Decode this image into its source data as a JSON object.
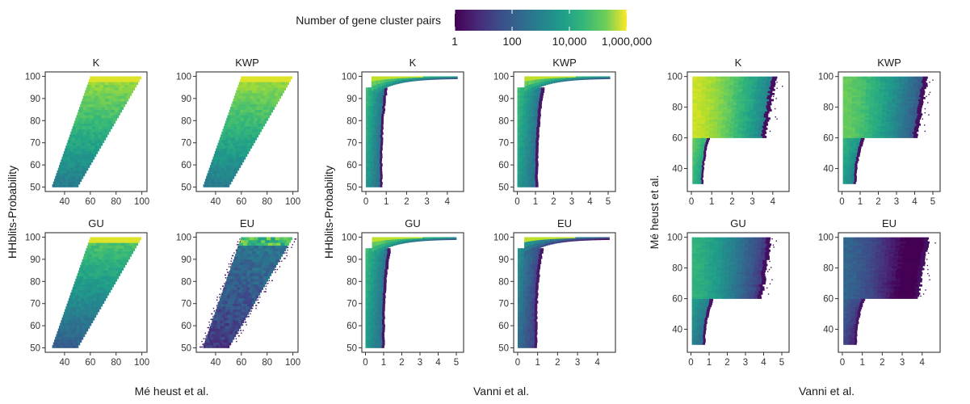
{
  "legend": {
    "title": "Number of gene cluster pairs",
    "scale": "log10",
    "colormap": "viridis",
    "range": [
      1,
      1000000
    ],
    "ticks": [
      {
        "value": 1,
        "label": "1"
      },
      {
        "value": 100,
        "label": "100"
      },
      {
        "value": 10000,
        "label": "10,000"
      },
      {
        "value": 1000000,
        "label": "1,000,000"
      }
    ],
    "placement": "top"
  },
  "chart_data": [
    {
      "type": "heatmap",
      "xlabel": "Mé heust et al.",
      "ylabel": "HHblits-Probability",
      "panels": [
        {
          "label": "K",
          "xlim": [
            25,
            104
          ],
          "ylim": [
            48,
            102
          ],
          "xticks": [
            40,
            60,
            80,
            100
          ],
          "yticks": [
            50,
            60,
            70,
            80,
            90,
            100
          ],
          "polygon": [
            [
              30,
              50
            ],
            [
              50,
              50
            ],
            [
              100,
              100
            ],
            [
              60,
              100
            ]
          ],
          "intensity": "medium-high"
        },
        {
          "label": "KWP",
          "xlim": [
            25,
            104
          ],
          "ylim": [
            48,
            102
          ],
          "xticks": [
            40,
            60,
            80,
            100
          ],
          "yticks": [
            50,
            60,
            70,
            80,
            90,
            100
          ],
          "polygon": [
            [
              30,
              50
            ],
            [
              50,
              50
            ],
            [
              100,
              100
            ],
            [
              60,
              100
            ]
          ],
          "intensity": "medium-high"
        },
        {
          "label": "GU",
          "xlim": [
            25,
            104
          ],
          "ylim": [
            48,
            102
          ],
          "xticks": [
            40,
            60,
            80,
            100
          ],
          "yticks": [
            50,
            60,
            70,
            80,
            90,
            100
          ],
          "polygon": [
            [
              30,
              50
            ],
            [
              50,
              50
            ],
            [
              100,
              100
            ],
            [
              60,
              100
            ]
          ],
          "intensity": "medium"
        },
        {
          "label": "EU",
          "xlim": [
            25,
            104
          ],
          "ylim": [
            48,
            102
          ],
          "xticks": [
            40,
            60,
            80,
            100
          ],
          "yticks": [
            50,
            60,
            70,
            80,
            90,
            100
          ],
          "polygon": [
            [
              30,
              50
            ],
            [
              50,
              50
            ],
            [
              100,
              100
            ],
            [
              60,
              100
            ]
          ],
          "intensity": "low"
        }
      ]
    },
    {
      "type": "heatmap",
      "xlabel": "Vanni et al.",
      "ylabel": "HHblits-Probability",
      "panels": [
        {
          "label": "K",
          "xlim": [
            -0.2,
            4.8
          ],
          "ylim": [
            48,
            102
          ],
          "xticks": [
            0,
            1,
            2,
            3,
            4
          ],
          "yticks": [
            50,
            60,
            70,
            80,
            90,
            100
          ],
          "shape": "L",
          "edge_x": 0.9,
          "max_x": 4.5,
          "intensity": "medium"
        },
        {
          "label": "KWP",
          "xlim": [
            -0.2,
            5.4
          ],
          "ylim": [
            48,
            102
          ],
          "xticks": [
            0,
            1,
            2,
            3,
            4,
            5
          ],
          "yticks": [
            50,
            60,
            70,
            80,
            90,
            100
          ],
          "shape": "L",
          "edge_x": 1.3,
          "max_x": 5.1,
          "intensity": "medium"
        },
        {
          "label": "GU",
          "xlim": [
            -0.2,
            5.4
          ],
          "ylim": [
            48,
            102
          ],
          "xticks": [
            0,
            1,
            2,
            3,
            4,
            5
          ],
          "yticks": [
            50,
            60,
            70,
            80,
            90,
            100
          ],
          "shape": "L",
          "edge_x": 1.2,
          "max_x": 5.0,
          "intensity": "medium"
        },
        {
          "label": "EU",
          "xlim": [
            -0.2,
            4.9
          ],
          "ylim": [
            48,
            102
          ],
          "xticks": [
            0,
            1,
            2,
            3,
            4
          ],
          "yticks": [
            50,
            60,
            70,
            80,
            90,
            100
          ],
          "shape": "L",
          "edge_x": 1.1,
          "max_x": 4.6,
          "intensity": "low"
        }
      ]
    },
    {
      "type": "heatmap",
      "xlabel": "Vanni et al.",
      "ylabel": "Mé heust et al.",
      "panels": [
        {
          "label": "K",
          "xlim": [
            -0.2,
            4.8
          ],
          "ylim": [
            25,
            103
          ],
          "xticks": [
            0,
            1,
            2,
            3,
            4
          ],
          "yticks": [
            40,
            60,
            80,
            100
          ],
          "shape": "step",
          "step_y": 60,
          "edge_x": 0.7,
          "max_x": 4.3,
          "intensity": "high"
        },
        {
          "label": "KWP",
          "xlim": [
            -0.2,
            5.4
          ],
          "ylim": [
            25,
            103
          ],
          "xticks": [
            0,
            1,
            2,
            3,
            4,
            5
          ],
          "yticks": [
            40,
            60,
            80,
            100
          ],
          "shape": "step",
          "step_y": 60,
          "edge_x": 1.0,
          "max_x": 4.9,
          "intensity": "medium-high"
        },
        {
          "label": "GU",
          "xlim": [
            -0.2,
            5.4
          ],
          "ylim": [
            25,
            103
          ],
          "xticks": [
            0,
            1,
            2,
            3,
            4,
            5
          ],
          "yticks": [
            40,
            60,
            80,
            100
          ],
          "shape": "step",
          "step_y": 60,
          "edge_x": 1.0,
          "max_x": 4.6,
          "intensity": "medium"
        },
        {
          "label": "EU",
          "xlim": [
            -0.2,
            4.9
          ],
          "ylim": [
            25,
            103
          ],
          "xticks": [
            0,
            1,
            2,
            3,
            4
          ],
          "yticks": [
            40,
            60,
            80,
            100
          ],
          "shape": "step",
          "step_y": 60,
          "edge_x": 0.9,
          "max_x": 4.5,
          "intensity": "low"
        }
      ]
    }
  ]
}
